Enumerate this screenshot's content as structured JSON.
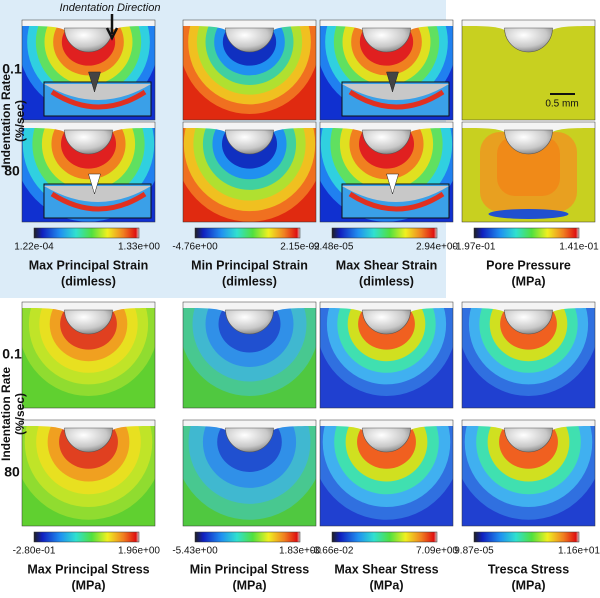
{
  "annotation": "Indentation Direction",
  "scale_bar": "0.5 mm",
  "sections": [
    {
      "row_axis": [
        "Indentation Rate",
        "(%/sec)"
      ],
      "rows": [
        "0.1",
        "80"
      ],
      "columns": [
        {
          "title": "Max Principal Strain",
          "unit": "(dimless)",
          "min": "1.22e-04",
          "max": "1.33e+00"
        },
        {
          "title": "Min Principal Strain",
          "unit": "(dimless)",
          "min": "-4.76e+00",
          "max": "2.15e-02"
        },
        {
          "title": "Max Shear Strain",
          "unit": "(dimless)",
          "min": "-9.48e-05",
          "max": "2.94e+00"
        },
        {
          "title": "Pore Pressure",
          "unit": "(MPa)",
          "min": "-1.97e-01",
          "max": "1.41e-01"
        }
      ]
    },
    {
      "row_axis": [
        "Indentation Rate",
        "(%/sec)"
      ],
      "rows": [
        "0.1",
        "80"
      ],
      "columns": [
        {
          "title": "Max Principal Stress",
          "unit": "(MPa)",
          "min": "-2.80e-01",
          "max": "1.96e+00"
        },
        {
          "title": "Min Principal Stress",
          "unit": "(MPa)",
          "min": "-5.43e+00",
          "max": "1.83e+00"
        },
        {
          "title": "Max Shear Stress",
          "unit": "(MPa)",
          "min": "-3.66e-02",
          "max": "7.09e+00"
        },
        {
          "title": "Tresca Stress",
          "unit": "(MPa)",
          "min": "9.87e-05",
          "max": "1.16e+01"
        }
      ]
    }
  ]
}
